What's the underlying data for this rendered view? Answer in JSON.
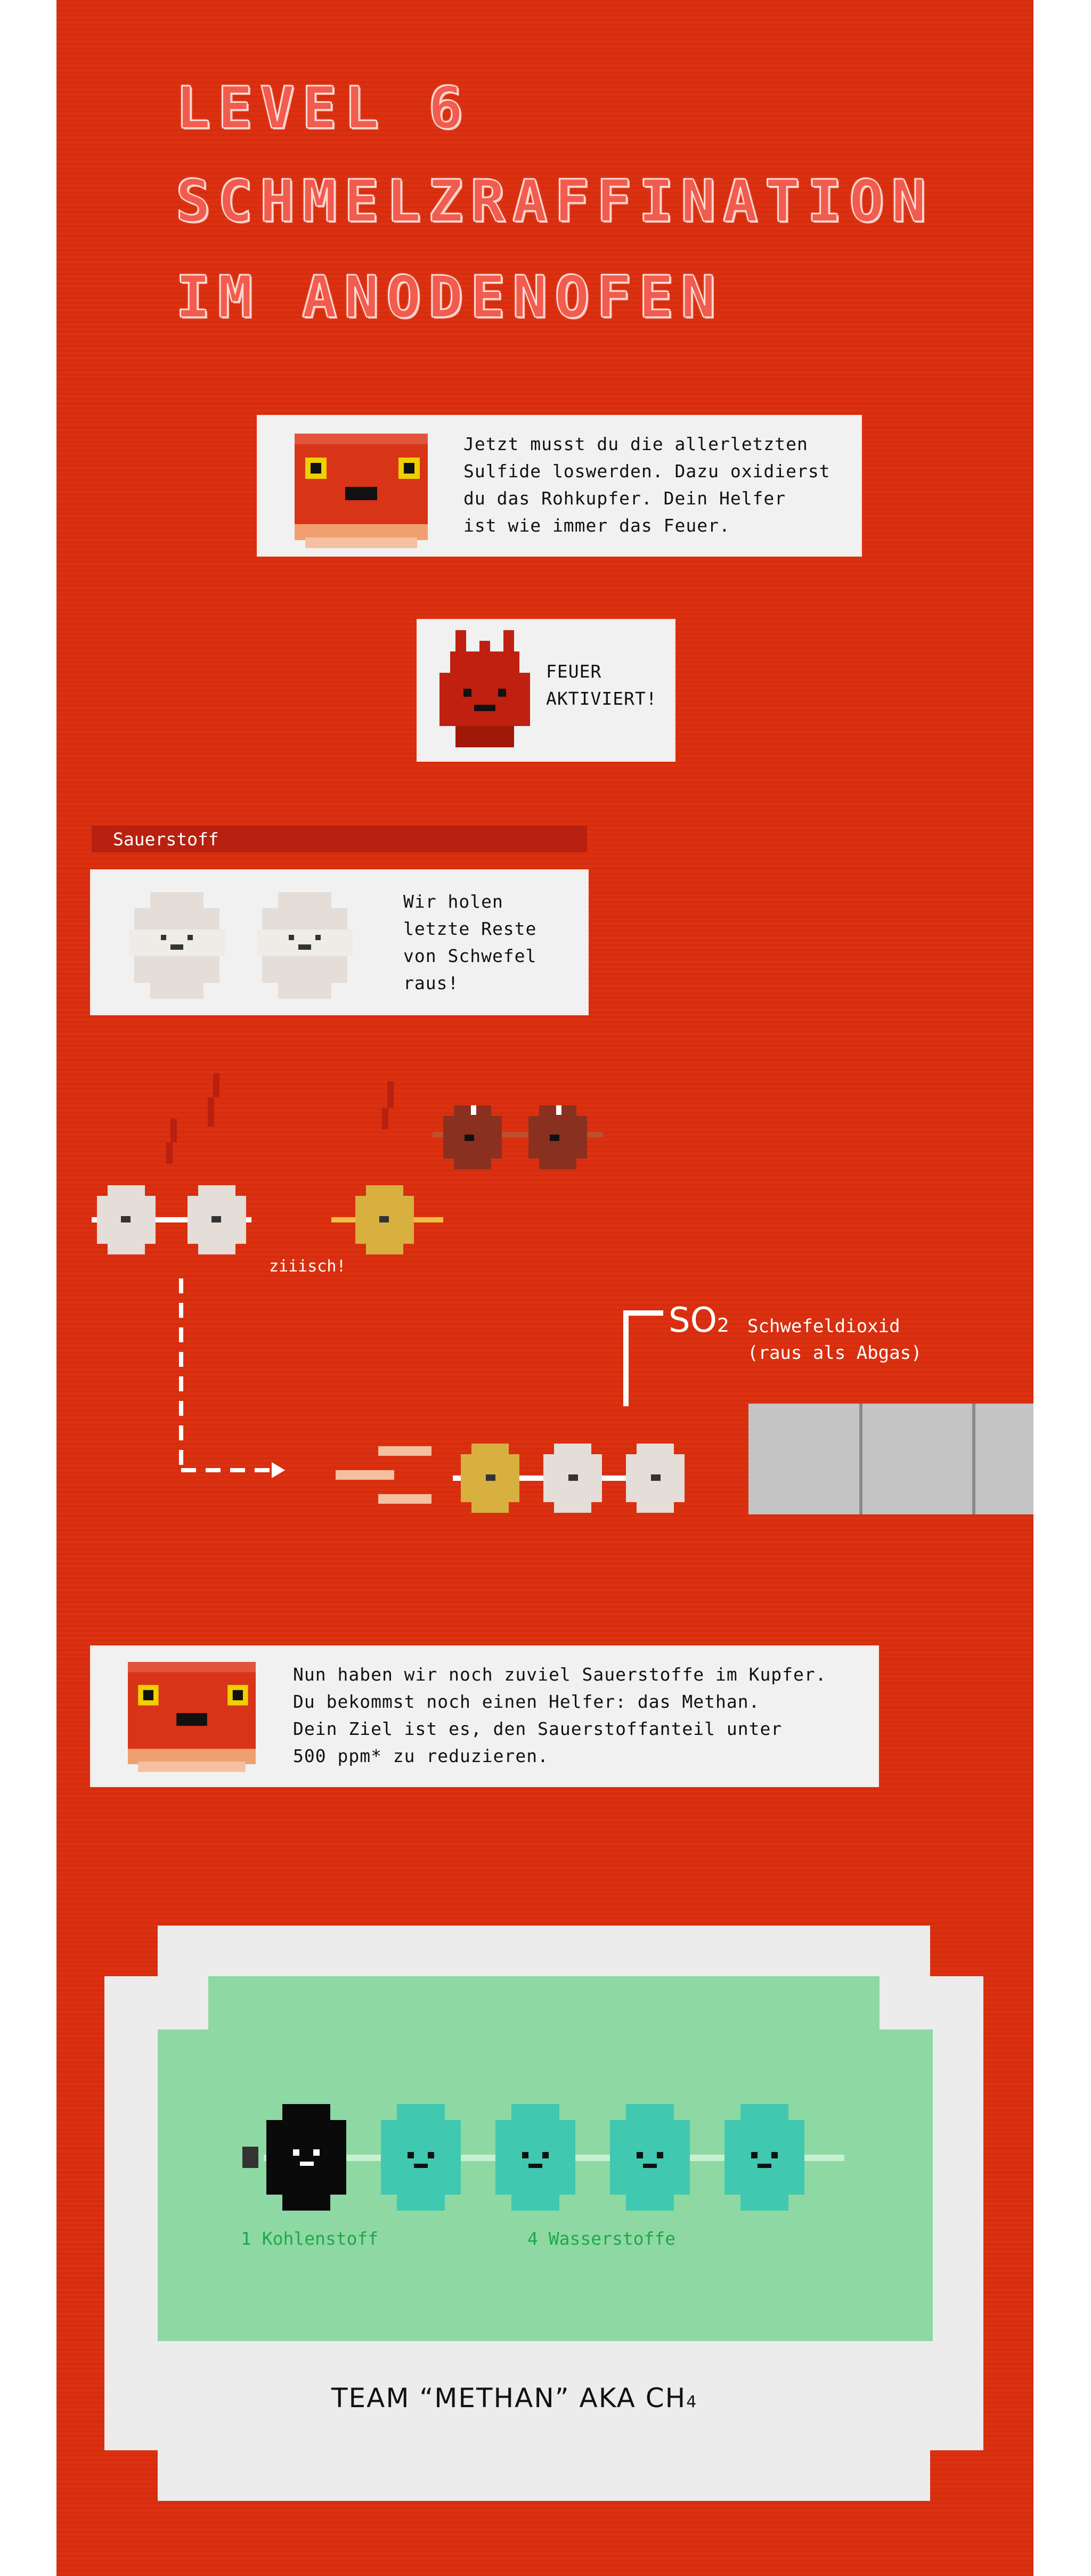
{
  "level": {
    "title_line1": "LEVEL 6",
    "title_line2": "SCHMELZRAFFINATION",
    "title_line3": "IM ANODENOFEN"
  },
  "intro": {
    "text": "Jetzt musst du die allerletzten\nSulfide loswerden. Dazu oxidierst\ndu das Rohkupfer. Dein Helfer\nist wie immer das Feuer."
  },
  "fire": {
    "text": "FEUER\nAKTIVIERT!"
  },
  "oxygen_card": {
    "header": "Sauerstoff",
    "text": "Wir holen\nletzte Reste\nvon Schwefel\nraus!"
  },
  "reaction": {
    "sound": "ziiisch!",
    "so2_formula": "SO",
    "so2_subscript": "2",
    "so2_name": "Schwefeldioxid",
    "so2_note": "(raus als Abgas)"
  },
  "hint": {
    "text": "Nun haben wir noch zuviel Sauerstoffe im Kupfer.\nDu bekommst noch einen Helfer: das Methan.\nDein Ziel ist es, den Sauerstoffanteil unter\n500 ppm* zu reduzieren."
  },
  "methane": {
    "carbon_label": "1 Kohlenstoff",
    "hydrogen_label": "4 Wasserstoffe",
    "team_label": "TEAM “METHAN” AKA CH",
    "team_subscript": "4"
  },
  "colors": {
    "background": "#dc3010",
    "oxygen": "#ece8e4",
    "sulfur": "#d8b040",
    "copper": "#8a3020",
    "carbon": "#0a0a0a",
    "hydrogen": "#40c8b0",
    "methane_bg": "#8ed8a4",
    "label_green": "#1fa84a"
  }
}
